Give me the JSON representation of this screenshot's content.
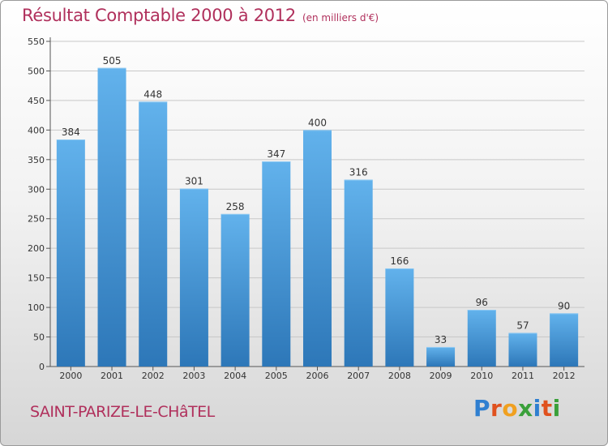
{
  "title": "Résultat Comptable 2000 à 2012",
  "subtitle": "(en milliers d'€)",
  "commune": "SAINT-PARIZE-LE-CHâTEL",
  "logo": {
    "letters": [
      "P",
      "r",
      "o",
      "x",
      "i",
      "t",
      "i"
    ],
    "colors": [
      "#2f7fd0",
      "#e0511e",
      "#f0a020",
      "#3aa03a",
      "#2f7fd0",
      "#e0511e",
      "#3aa03a"
    ]
  },
  "colors": {
    "bar_top": "#62b2ec",
    "bar_bottom": "#2d77b8",
    "title": "#b0305c"
  },
  "chart_data": {
    "type": "bar",
    "title": "Résultat Comptable 2000 à 2012",
    "subtitle": "(en milliers d'€)",
    "xlabel": "",
    "ylabel": "",
    "categories": [
      "2000",
      "2001",
      "2002",
      "2003",
      "2004",
      "2005",
      "2006",
      "2007",
      "2008",
      "2009",
      "2010",
      "2011",
      "2012"
    ],
    "values": [
      384,
      505,
      448,
      301,
      258,
      347,
      400,
      316,
      166,
      33,
      96,
      57,
      90
    ],
    "value_labels": [
      "384",
      "505",
      "448",
      "301",
      "258",
      "347",
      "400",
      "316",
      "166",
      "33",
      "96",
      "57",
      "90"
    ],
    "ylim": [
      0,
      550
    ],
    "yticks": [
      0,
      50,
      100,
      150,
      200,
      250,
      300,
      350,
      400,
      450,
      500,
      550
    ],
    "ytick_labels": [
      "0",
      "50",
      "100",
      "150",
      "200",
      "250",
      "300",
      "350",
      "400",
      "450",
      "500",
      "550"
    ],
    "grid": true
  }
}
